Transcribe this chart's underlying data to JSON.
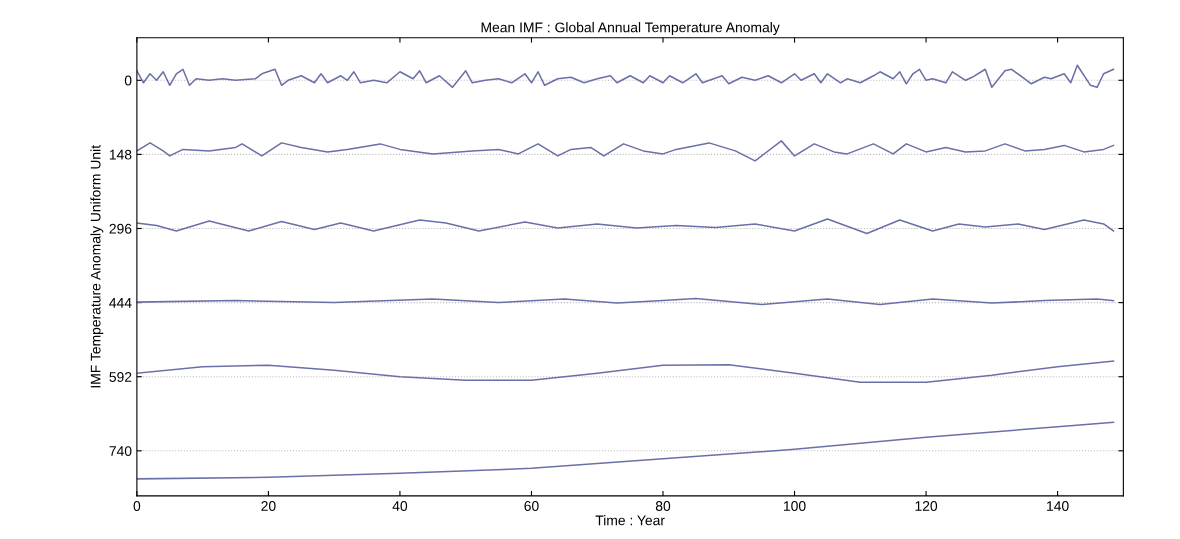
{
  "chart_data": {
    "type": "line",
    "title": "Mean IMF : Global Annual Temperature Anomaly",
    "xlabel": "Time : Year",
    "ylabel": "IMF Temperature Anomaly Uniform Unit",
    "xlim": [
      0,
      150
    ],
    "xticks": [
      0,
      20,
      40,
      60,
      80,
      100,
      120,
      140
    ],
    "ylim": [
      830,
      -85
    ],
    "yticks": [
      0,
      148,
      296,
      444,
      592,
      740
    ],
    "grid": "y",
    "marker": "none",
    "line_style": "solid",
    "series": [
      {
        "color": "#6b6fa8",
        "x": [
          0,
          1,
          2,
          3,
          4,
          5,
          6,
          7,
          8,
          9,
          11,
          13,
          15,
          18,
          19,
          21,
          22,
          23,
          25,
          27,
          28,
          29,
          31,
          32,
          33,
          34,
          36,
          38,
          40,
          42,
          43,
          44,
          46,
          48,
          50,
          51,
          53,
          55,
          57,
          59,
          60,
          61,
          62,
          64,
          66,
          68,
          70,
          72,
          73,
          75,
          77,
          78,
          80,
          81,
          83,
          85,
          86,
          89,
          90,
          92,
          94,
          96,
          98,
          100,
          101,
          103,
          104,
          105,
          107,
          108,
          110,
          112,
          113,
          115,
          116,
          117,
          118,
          119,
          120,
          121,
          123,
          124,
          126,
          127,
          129,
          130,
          132,
          133,
          135,
          136,
          138,
          139,
          141,
          142,
          143,
          145,
          146,
          147,
          148.5
        ],
        "values": [
          -19,
          5,
          -13,
          0,
          -17,
          10,
          -13,
          -22,
          10,
          -3,
          0,
          -3,
          0,
          -3,
          -13,
          -22,
          10,
          0,
          -9,
          5,
          -13,
          5,
          -9,
          0,
          -17,
          5,
          0,
          5,
          -17,
          -3,
          -19,
          5,
          -9,
          14,
          -19,
          5,
          0,
          -3,
          5,
          -13,
          5,
          -17,
          10,
          -3,
          -6,
          5,
          -3,
          -9,
          5,
          -9,
          5,
          -9,
          5,
          -9,
          5,
          -13,
          5,
          -9,
          7,
          -6,
          0,
          -9,
          5,
          -13,
          0,
          -13,
          5,
          -13,
          5,
          -3,
          5,
          -9,
          -17,
          -3,
          -17,
          7,
          -13,
          -22,
          0,
          -3,
          5,
          -17,
          0,
          -6,
          -22,
          14,
          -19,
          -22,
          -3,
          7,
          -6,
          -3,
          -13,
          5,
          -30,
          10,
          14,
          -13,
          -22
        ]
      },
      {
        "color": "#6b6fa8",
        "x": [
          0,
          2,
          4,
          5,
          7,
          11,
          15,
          16,
          19,
          22,
          25,
          29,
          32,
          37,
          40,
          45,
          51,
          55,
          58,
          61,
          64,
          66,
          69,
          71,
          74,
          77,
          80,
          82,
          87,
          91,
          94,
          98,
          100,
          103,
          106,
          108,
          112,
          115,
          117,
          120,
          123,
          126,
          129,
          132,
          135,
          138,
          141,
          144,
          147,
          148.5
        ],
        "values": [
          141,
          125,
          141,
          151,
          138,
          141,
          134,
          127,
          151,
          125,
          134,
          143,
          138,
          127,
          138,
          147,
          141,
          138,
          147,
          127,
          151,
          138,
          134,
          151,
          127,
          141,
          147,
          138,
          125,
          141,
          161,
          121,
          151,
          127,
          143,
          147,
          127,
          147,
          127,
          143,
          134,
          143,
          141,
          127,
          141,
          138,
          130,
          143,
          138,
          130
        ]
      },
      {
        "color": "#6b6fa8",
        "x": [
          0,
          3,
          6,
          11,
          17,
          22,
          27,
          31,
          36,
          43,
          47,
          52,
          59,
          64,
          70,
          76,
          82,
          88,
          94,
          100,
          105,
          111,
          116,
          121,
          125,
          129,
          134,
          138,
          144,
          147,
          148.5
        ],
        "values": [
          285,
          290,
          301,
          281,
          301,
          282,
          298,
          285,
          301,
          279,
          285,
          301,
          283,
          295,
          287,
          295,
          290,
          294,
          287,
          301,
          277,
          306,
          279,
          301,
          287,
          293,
          287,
          298,
          279,
          287,
          301
        ]
      },
      {
        "color": "#6b6fa8",
        "x": [
          0,
          15,
          30,
          45,
          55,
          65,
          73,
          80,
          85,
          95,
          105,
          113,
          121,
          130,
          138,
          146,
          148.5
        ],
        "values": [
          443,
          440,
          444,
          437,
          444,
          437,
          445,
          440,
          436,
          448,
          437,
          448,
          437,
          445,
          440,
          437,
          440
        ]
      },
      {
        "color": "#6b6fa8",
        "x": [
          0,
          10,
          20,
          30,
          40,
          50,
          60,
          70,
          80,
          90,
          100,
          110,
          120,
          130,
          140,
          148.5
        ],
        "values": [
          585,
          572,
          569,
          579,
          592,
          599,
          599,
          585,
          569,
          568,
          585,
          603,
          603,
          589,
          572,
          561
        ]
      },
      {
        "color": "#6b6fa8",
        "x": [
          0,
          20,
          40,
          60,
          80,
          100,
          120,
          140,
          148.5
        ],
        "values": [
          796,
          793,
          785,
          775,
          756,
          737,
          713,
          692,
          683
        ]
      }
    ]
  }
}
